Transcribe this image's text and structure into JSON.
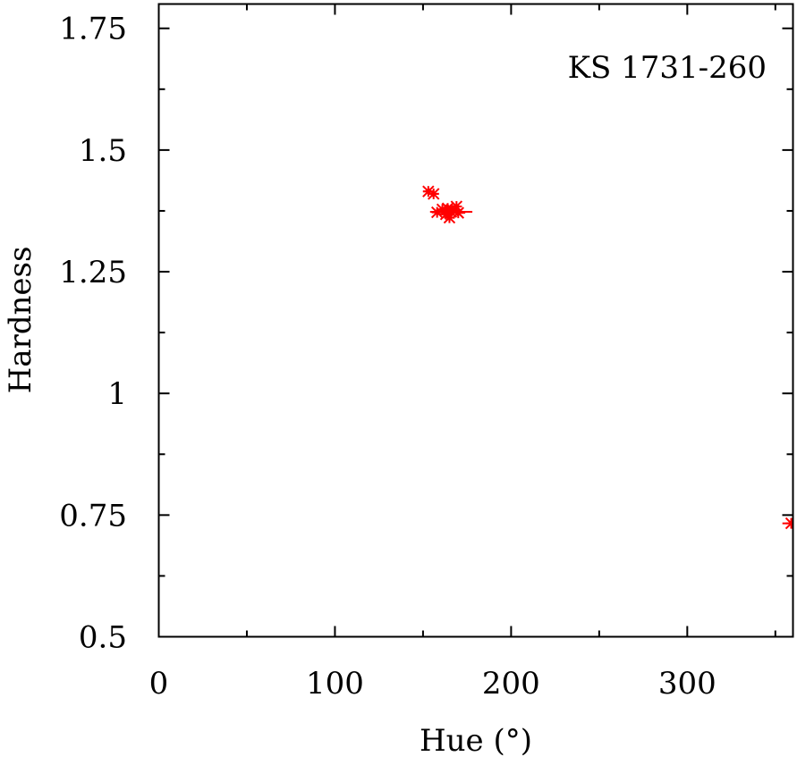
{
  "chart_data": {
    "type": "scatter",
    "title": "",
    "annotation": "KS 1731-260",
    "xlabel": "Hue (°)",
    "ylabel": "Hardness",
    "xlim": [
      0,
      360
    ],
    "ylim": [
      0.5,
      1.8
    ],
    "grid": false,
    "legend": "none",
    "x_ticks": [
      0,
      100,
      200,
      300
    ],
    "x_minor_ticks": [
      50,
      150,
      250,
      350
    ],
    "x_tick_labels": [
      "0",
      "100",
      "200",
      "300"
    ],
    "y_ticks": [
      0.5,
      0.75,
      1.0,
      1.25,
      1.5,
      1.75
    ],
    "y_minor_ticks": [
      0.625,
      0.875,
      1.125,
      1.375,
      1.625
    ],
    "y_tick_labels": [
      "0.5",
      "0.75",
      "1",
      "1.25",
      "1.5",
      "1.75"
    ],
    "series": [
      {
        "color": "#ff0000",
        "marker": "star",
        "points": [
          {
            "x": 153,
            "y": 1.415,
            "xerr": 3,
            "yerr": 0.006
          },
          {
            "x": 156,
            "y": 1.41,
            "xerr": 3,
            "yerr": 0.006
          },
          {
            "x": 158,
            "y": 1.372,
            "xerr": 3,
            "yerr": 0.006
          },
          {
            "x": 161,
            "y": 1.378,
            "xerr": 3,
            "yerr": 0.006
          },
          {
            "x": 163,
            "y": 1.368,
            "xerr": 4,
            "yerr": 0.008
          },
          {
            "x": 164,
            "y": 1.38,
            "xerr": 3,
            "yerr": 0.008
          },
          {
            "x": 165,
            "y": 1.361,
            "xerr": 3,
            "yerr": 0.008
          },
          {
            "x": 166,
            "y": 1.373,
            "xerr": 12,
            "yerr": 0.008
          },
          {
            "x": 167,
            "y": 1.376,
            "xerr": 4,
            "yerr": 0.008
          },
          {
            "x": 169,
            "y": 1.384,
            "xerr": 3,
            "yerr": 0.006
          },
          {
            "x": 170,
            "y": 1.371,
            "xerr": 4,
            "yerr": 0.006
          },
          {
            "x": 359,
            "y": 0.733,
            "xerr": 5,
            "yerr": 0.006
          }
        ]
      }
    ]
  }
}
